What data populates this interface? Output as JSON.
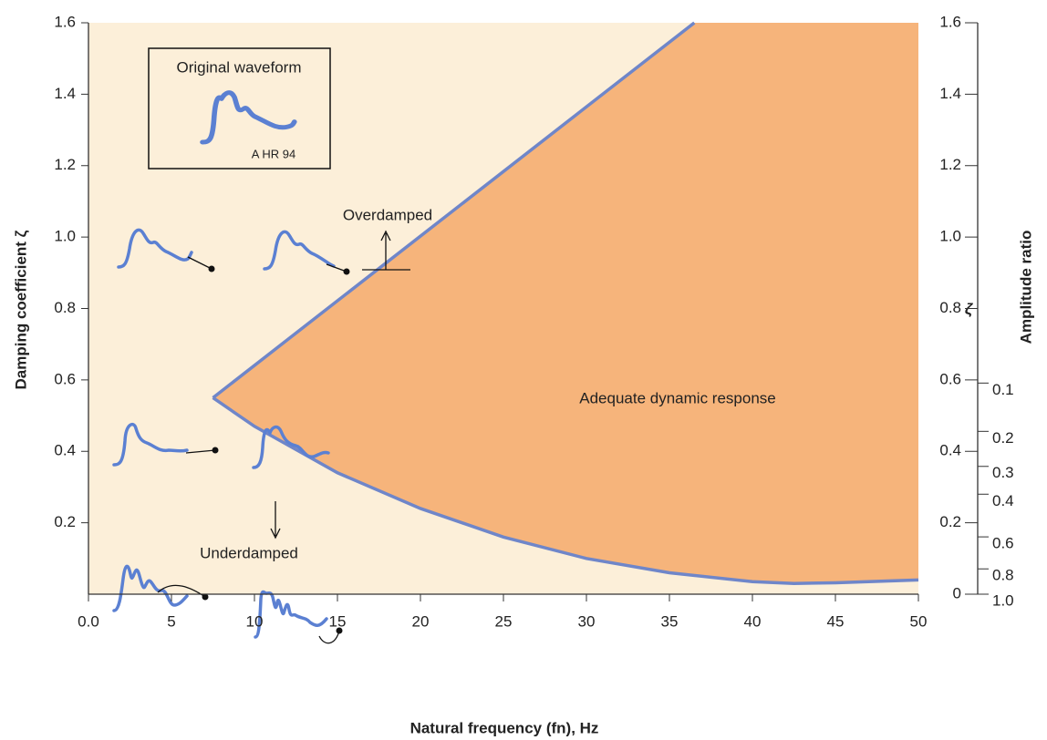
{
  "chart_data": {
    "type": "region",
    "x_label": "Natural frequency (fn), Hz",
    "y_label": "Damping coefficient ζ",
    "xlim": [
      0,
      50
    ],
    "ylim": [
      0,
      1.6
    ],
    "xticks": [
      {
        "value": 0,
        "label": "0.0"
      },
      5,
      10,
      15,
      20,
      25,
      30,
      35,
      40,
      45,
      50
    ],
    "yticks": [
      0.2,
      0.4,
      0.6,
      0.8,
      {
        "value": 1,
        "label": "1.0"
      },
      1.2,
      1.4,
      1.6
    ],
    "y2label": "ζ",
    "y2lim": [
      0,
      1.6
    ],
    "y2ticks": [
      0,
      0.2,
      0.4,
      0.6,
      0.8,
      {
        "value": 1,
        "label": "1.0"
      },
      1.2,
      1.4,
      1.6
    ],
    "amplitude_ratio": {
      "label": "Amplitude ratio",
      "ticks": [
        0.1,
        0.2,
        0.3,
        0.4,
        0.6,
        0.8,
        {
          "value": 1,
          "label": "1.0"
        }
      ]
    },
    "background_color": "#fcefd9",
    "region_color": "#f6b47b",
    "series": [
      {
        "color": "#6f86c9",
        "x": [
          7.5,
          36.5
        ],
        "values": [
          0.55,
          1.6
        ]
      },
      {
        "color": "#6f86c9",
        "x": [
          7.5,
          10,
          15,
          20,
          25,
          30,
          35,
          40,
          42.5,
          45,
          50
        ],
        "values": [
          0.55,
          0.47,
          0.34,
          0.24,
          0.16,
          0.1,
          0.06,
          0.035,
          0.03,
          0.032,
          0.04
        ]
      }
    ],
    "annotations": {
      "region": "Adequate dynamic response",
      "over": "Overdamped",
      "under": "Underdamped",
      "box_title": "Original waveform",
      "box_caption": "A HR 94"
    }
  }
}
